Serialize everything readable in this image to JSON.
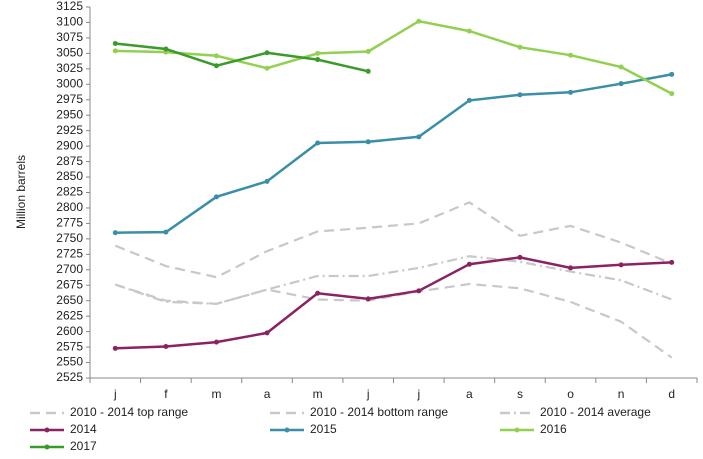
{
  "chart_data": {
    "type": "line",
    "y_label": "Million barrels",
    "categories": [
      "j",
      "f",
      "m",
      "a",
      "m",
      "j",
      "j",
      "a",
      "s",
      "o",
      "n",
      "d"
    ],
    "ylim": [
      2525,
      3125
    ],
    "yticks": [
      2525,
      2550,
      2575,
      2600,
      2625,
      2650,
      2675,
      2700,
      2725,
      2750,
      2775,
      2800,
      2825,
      2850,
      2875,
      2900,
      2925,
      2950,
      2975,
      3000,
      3025,
      3050,
      3075,
      3100,
      3125
    ],
    "series": [
      {
        "name": "2010 - 2014 top range",
        "color": "#c8c8c8",
        "dash": "dashed",
        "marker": false,
        "values": [
          2739,
          2706,
          2688,
          2730,
          2762,
          2768,
          2775,
          2809,
          2755,
          2771,
          2744,
          2710
        ]
      },
      {
        "name": "2010 - 2014 bottom range",
        "color": "#c8c8c8",
        "dash": "dashed",
        "marker": false,
        "values": [
          2676,
          2650,
          2645,
          2668,
          2652,
          2650,
          2665,
          2677,
          2670,
          2648,
          2616,
          2558
        ]
      },
      {
        "name": "2010 - 2014 average",
        "color": "#c8c8c8",
        "dash": "dashdot",
        "marker": false,
        "values": [
          2676,
          2648,
          2645,
          2668,
          2690,
          2690,
          2703,
          2722,
          2713,
          2697,
          2683,
          2652
        ]
      },
      {
        "name": "2014",
        "color": "#8b2262",
        "dash": "solid",
        "marker": true,
        "values": [
          2573,
          2576,
          2583,
          2598,
          2662,
          2653,
          2666,
          2709,
          2720,
          2703,
          2708,
          2712
        ]
      },
      {
        "name": "2015",
        "color": "#3a8fa8",
        "dash": "solid",
        "marker": true,
        "values": [
          2760,
          2761,
          2818,
          2843,
          2905,
          2907,
          2915,
          2974,
          2983,
          2987,
          3001,
          3016
        ]
      },
      {
        "name": "2016",
        "color": "#92d050",
        "dash": "solid",
        "marker": true,
        "values": [
          3054,
          3052,
          3046,
          3026,
          3050,
          3053,
          3102,
          3086,
          3060,
          3047,
          3028,
          2985
        ]
      },
      {
        "name": "2017",
        "color": "#3a9a2a",
        "dash": "solid",
        "marker": true,
        "values": [
          3066,
          3057,
          3030,
          3051,
          3040,
          3021,
          null,
          null,
          null,
          null,
          null,
          null
        ]
      }
    ]
  }
}
